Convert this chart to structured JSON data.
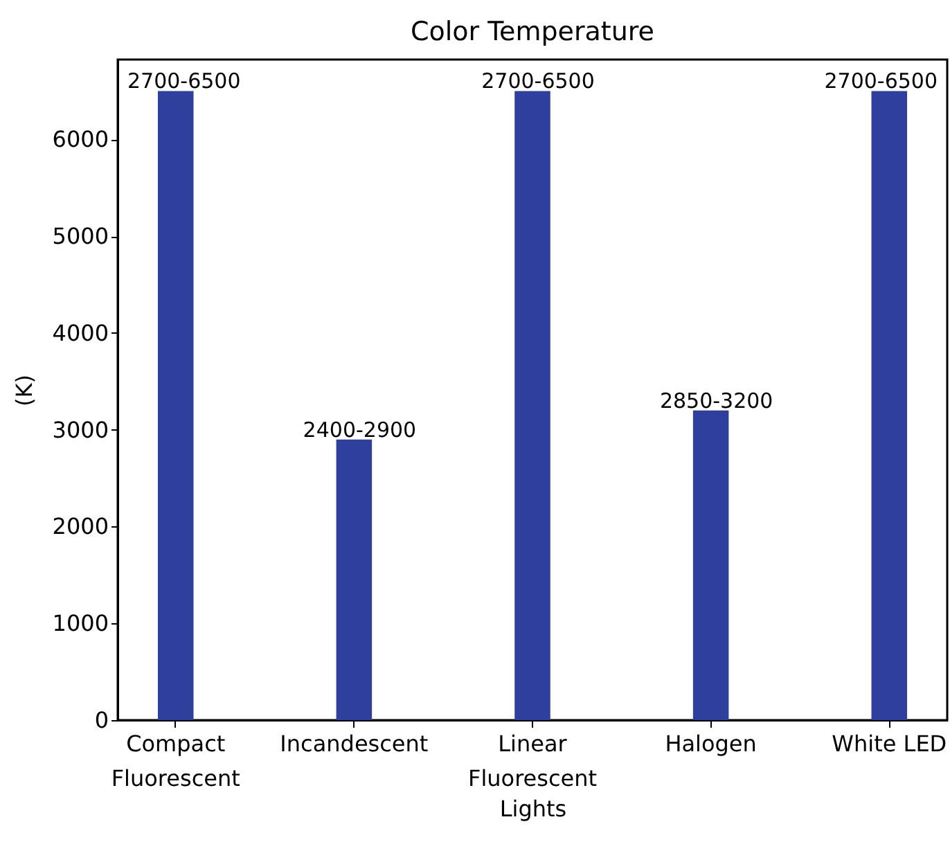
{
  "chart_data": {
    "type": "bar",
    "title": "Color Temperature",
    "xlabel": "Lights",
    "ylabel": "(K)",
    "categories": [
      "Compact\nFluorescent",
      "Incandescent",
      "Linear\nFluorescent",
      "Halogen",
      "White LED"
    ],
    "values": [
      6500,
      2900,
      6500,
      3200,
      6500
    ],
    "value_labels": [
      "2700-6500",
      "2400-2900",
      "2700-6500",
      "2850-3200",
      "2700-6500"
    ],
    "color": "#2e3f9e",
    "ylim": [
      0,
      6825
    ],
    "yticks": [
      0,
      1000,
      2000,
      3000,
      4000,
      5000,
      6000
    ]
  }
}
